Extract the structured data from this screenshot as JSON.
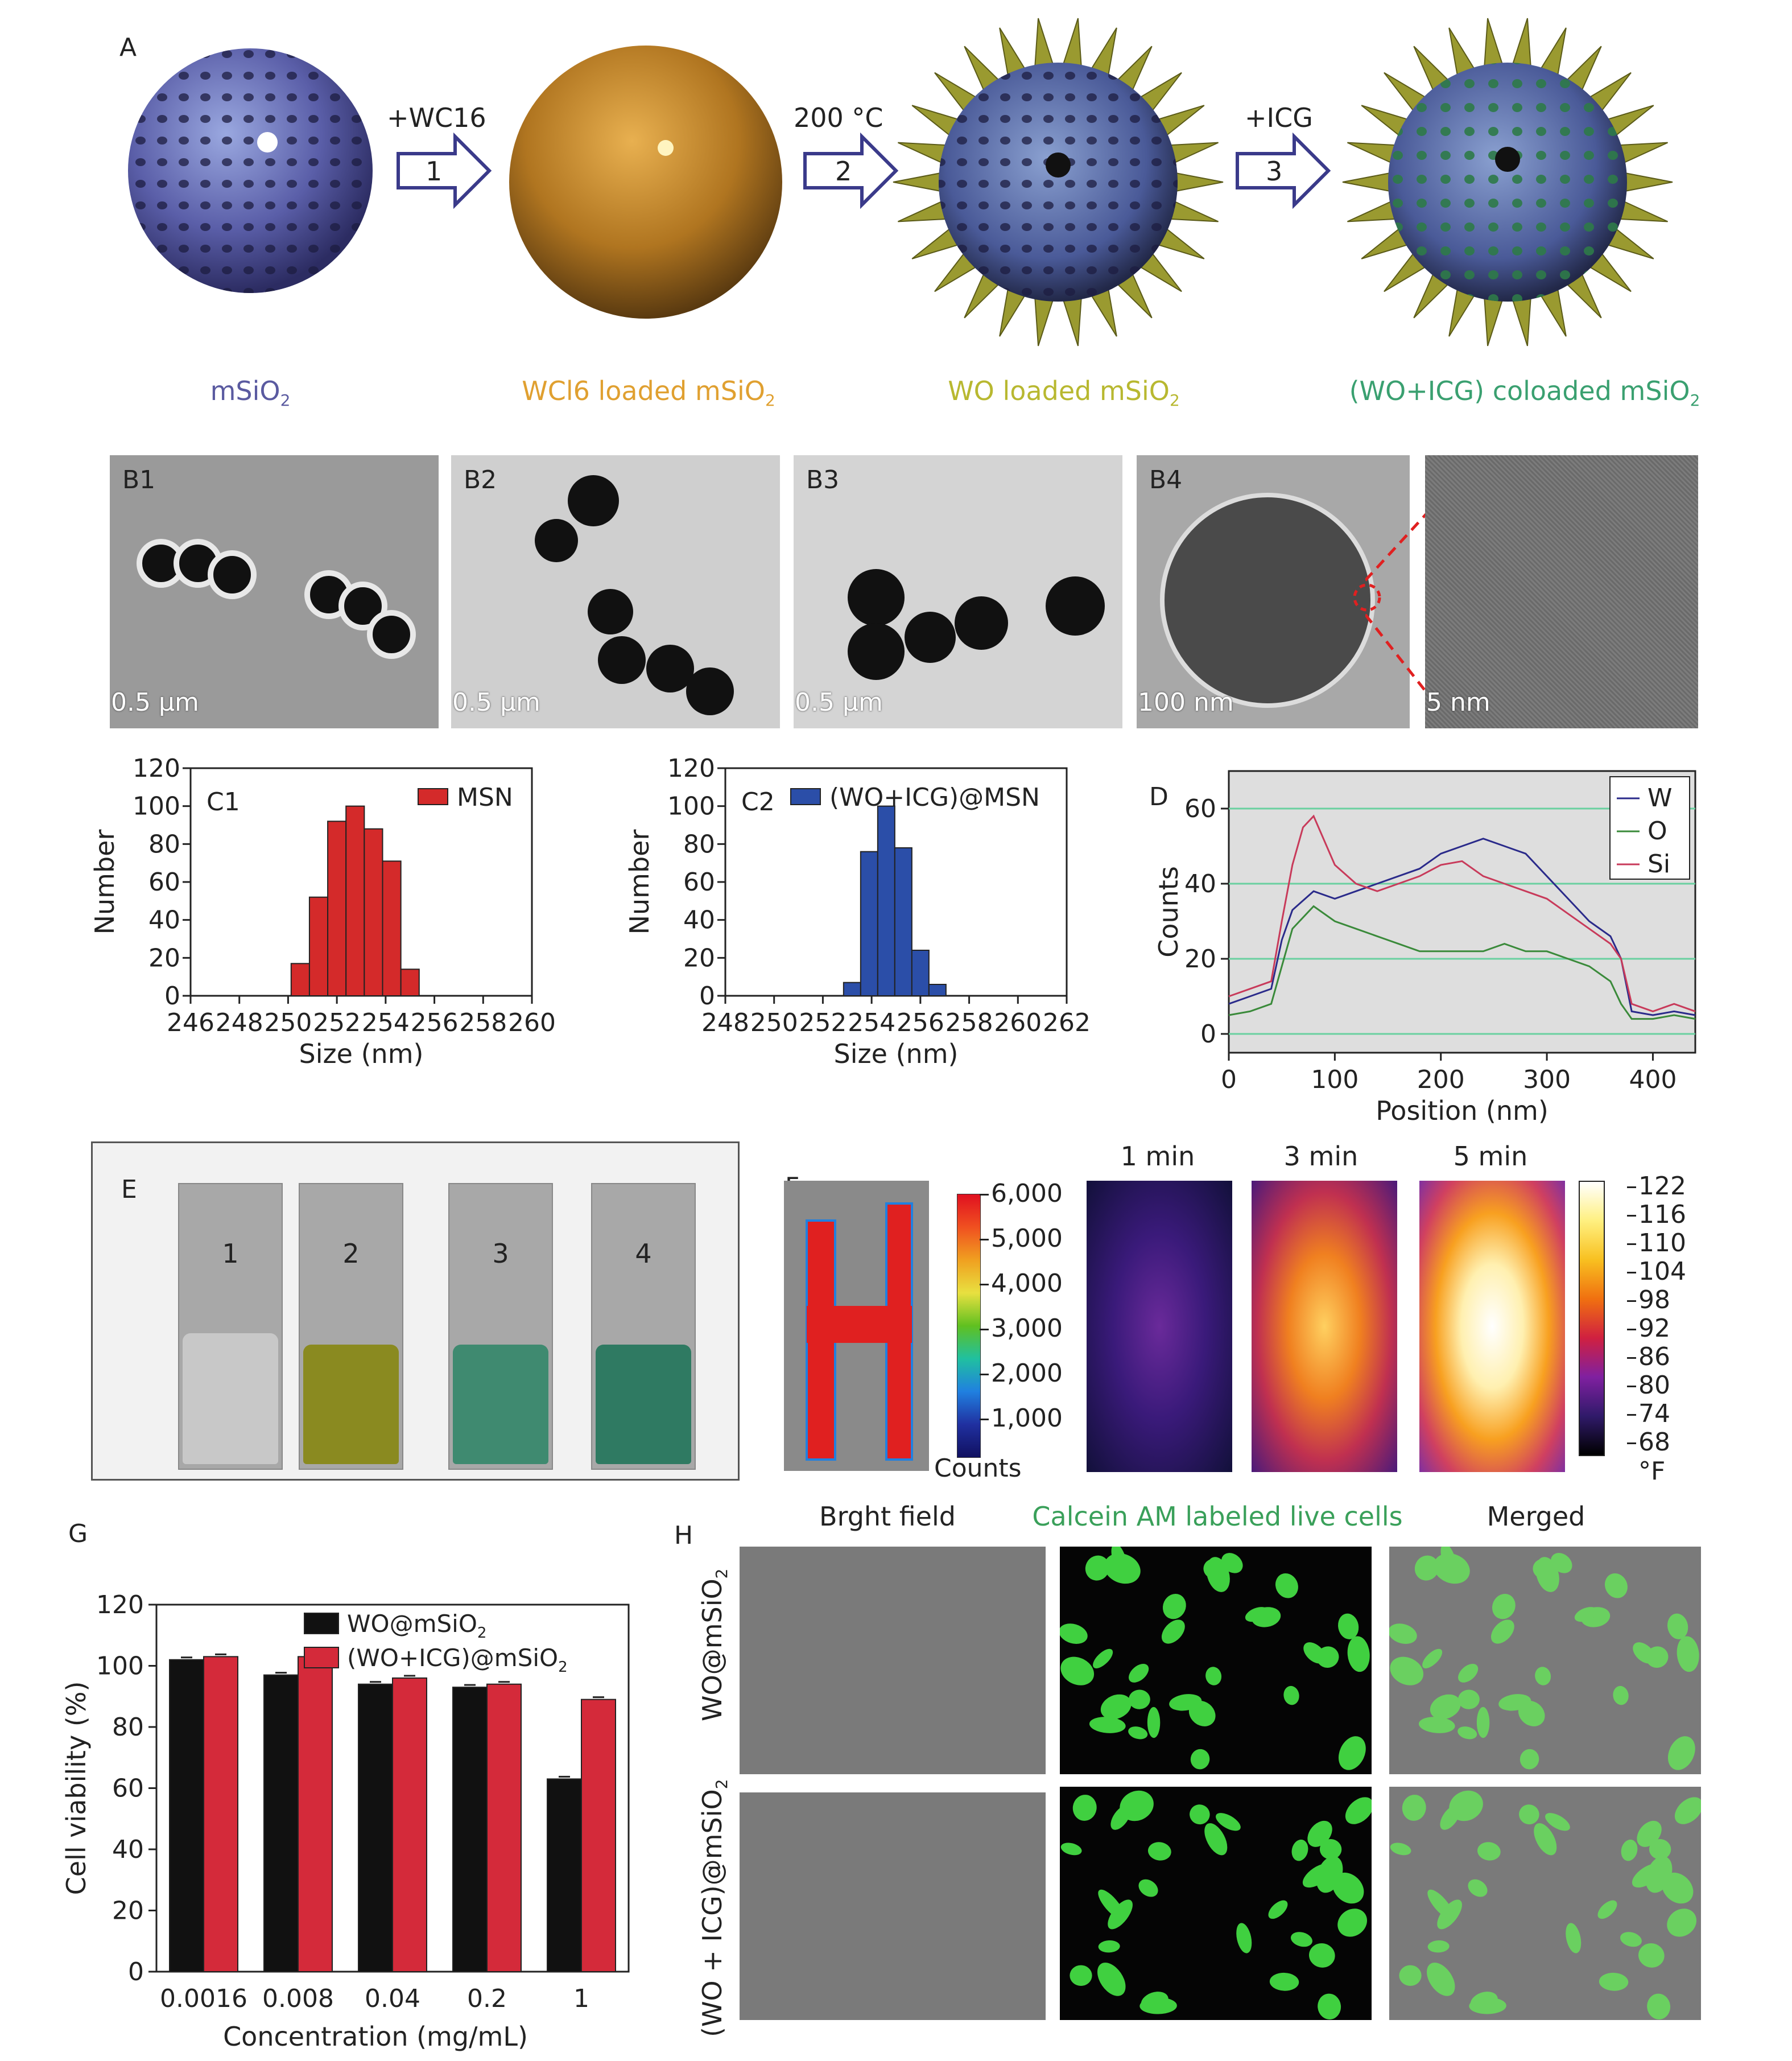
{
  "panelA": {
    "label": "A",
    "steps": [
      {
        "num": "1",
        "label": "+WC16"
      },
      {
        "num": "2",
        "label": "200 °C"
      },
      {
        "num": "3",
        "label": "+ICG"
      }
    ],
    "captions": [
      {
        "text": "mSiO",
        "sub": "2",
        "color": "#5a5aa0"
      },
      {
        "text": "WCl6 loaded mSiO",
        "sub": "2",
        "color": "#e0a030"
      },
      {
        "text": "WO loaded mSiO",
        "sub": "2",
        "color": "#b8b830"
      },
      {
        "text": "(WO+ICG) coloaded mSiO",
        "sub": "2",
        "color": "#3aa070"
      }
    ]
  },
  "panelB": {
    "images": [
      {
        "label": "B1",
        "scale": "0.5 μm"
      },
      {
        "label": "B2",
        "scale": "0.5 μm"
      },
      {
        "label": "B3",
        "scale": "0.5 μm"
      },
      {
        "label": "B4",
        "scale": "100 nm"
      },
      {
        "label": "",
        "scale": "5 nm"
      }
    ]
  },
  "chart_data": [
    {
      "id": "C1",
      "type": "bar",
      "panel_label": "C1",
      "xlabel": "Size (nm)",
      "ylabel": "Number",
      "xlim": [
        246,
        260
      ],
      "ylim": [
        0,
        120
      ],
      "xticks": [
        "246",
        "248",
        "250",
        "252",
        "254",
        "256",
        "258",
        "260"
      ],
      "yticks": [
        "0",
        "20",
        "40",
        "60",
        "80",
        "100",
        "120"
      ],
      "legend": "MSN",
      "color": "#d42a2a",
      "x": [
        250.5,
        251.25,
        252.0,
        252.75,
        253.5,
        254.25,
        255.0
      ],
      "values": [
        17,
        52,
        92,
        100,
        88,
        71,
        14
      ]
    },
    {
      "id": "C2",
      "type": "bar",
      "panel_label": "C2",
      "xlabel": "Size (nm)",
      "ylabel": "Number",
      "xlim": [
        248,
        262
      ],
      "ylim": [
        0,
        120
      ],
      "xticks": [
        "248",
        "250",
        "252",
        "254",
        "256",
        "258",
        "260",
        "262"
      ],
      "yticks": [
        "0",
        "20",
        "40",
        "60",
        "80",
        "100",
        "120"
      ],
      "legend": "(WO+ICG)@MSN",
      "color": "#2b4ea8",
      "x": [
        253.2,
        253.9,
        254.6,
        255.3,
        256.0,
        256.7
      ],
      "values": [
        7,
        76,
        100,
        78,
        24,
        6
      ]
    },
    {
      "id": "D",
      "type": "line",
      "panel_label": "D",
      "xlabel": "Position (nm)",
      "ylabel": "Counts",
      "xlim": [
        0,
        440
      ],
      "ylim": [
        -5,
        70
      ],
      "xticks": [
        "0",
        "100",
        "200",
        "300",
        "400"
      ],
      "yticks": [
        "0",
        "20",
        "40",
        "60"
      ],
      "series": [
        {
          "name": "W",
          "color": "#2a2a8a",
          "x": [
            0,
            20,
            40,
            50,
            60,
            80,
            100,
            120,
            140,
            160,
            180,
            200,
            220,
            240,
            260,
            280,
            300,
            320,
            340,
            360,
            370,
            380,
            400,
            420,
            440
          ],
          "y": [
            8,
            10,
            12,
            25,
            33,
            38,
            36,
            38,
            40,
            42,
            44,
            48,
            50,
            52,
            50,
            48,
            42,
            36,
            30,
            26,
            20,
            6,
            5,
            6,
            5
          ]
        },
        {
          "name": "O",
          "color": "#3a8a3a",
          "x": [
            0,
            20,
            40,
            50,
            60,
            80,
            100,
            120,
            140,
            160,
            180,
            200,
            220,
            240,
            260,
            280,
            300,
            320,
            340,
            360,
            370,
            380,
            400,
            420,
            440
          ],
          "y": [
            5,
            6,
            8,
            18,
            28,
            34,
            30,
            28,
            26,
            24,
            22,
            22,
            22,
            22,
            24,
            22,
            22,
            20,
            18,
            14,
            8,
            4,
            4,
            5,
            4
          ]
        },
        {
          "name": "Si",
          "color": "#c83a5a",
          "x": [
            0,
            20,
            40,
            50,
            60,
            70,
            80,
            100,
            120,
            140,
            160,
            180,
            200,
            220,
            240,
            260,
            280,
            300,
            320,
            340,
            360,
            370,
            380,
            400,
            420,
            440
          ],
          "y": [
            10,
            12,
            14,
            30,
            45,
            55,
            58,
            45,
            40,
            38,
            40,
            42,
            45,
            46,
            42,
            40,
            38,
            36,
            32,
            28,
            24,
            20,
            8,
            6,
            8,
            6
          ]
        }
      ]
    },
    {
      "id": "G",
      "type": "bar",
      "panel_label": "G",
      "xlabel": "Concentration (mg/mL)",
      "ylabel": "Cell viability (%)",
      "ylim": [
        0,
        120
      ],
      "yticks": [
        "0",
        "20",
        "40",
        "60",
        "80",
        "100",
        "120"
      ],
      "categories": [
        "0.0016",
        "0.008",
        "0.04",
        "0.2",
        "1"
      ],
      "series": [
        {
          "name": "WO@mSiO",
          "sub": "2",
          "color": "#111111",
          "values": [
            102,
            97,
            94,
            93,
            63
          ]
        },
        {
          "name": "(WO+ICG)@mSiO",
          "sub": "2",
          "color": "#d42a3a",
          "values": [
            103,
            103,
            96,
            94,
            89
          ]
        }
      ]
    }
  ],
  "panelE": {
    "label": "E",
    "cuvettes": [
      {
        "num": "1",
        "color": "#c8c8c8"
      },
      {
        "num": "2",
        "color": "#8a8a20"
      },
      {
        "num": "3",
        "color": "#3f8a70"
      },
      {
        "num": "4",
        "color": "#2f7a62"
      }
    ]
  },
  "panelF": {
    "label": "F",
    "count_ticks": [
      "6,000",
      "5,000",
      "4,000",
      "3,000",
      "2,000",
      "1,000"
    ],
    "count_label": "Counts",
    "times": [
      "1 min",
      "3 min",
      "5 min"
    ],
    "temp_ticks": [
      "122",
      "116",
      "110",
      "104",
      "98",
      "92",
      "86",
      "80",
      "74",
      "68"
    ],
    "temp_unit": "°F"
  },
  "panelH": {
    "label": "H",
    "columns": [
      {
        "text": "Brght field",
        "color": "#222222"
      },
      {
        "text": "Calcein AM labeled live cells",
        "color": "#3aa05a"
      },
      {
        "text": "Merged",
        "color": "#222222"
      }
    ],
    "rows": [
      {
        "text": "WO@mSiO",
        "sub": "2"
      },
      {
        "text": "(WO + ICG)@mSiO",
        "sub": "2"
      }
    ]
  }
}
